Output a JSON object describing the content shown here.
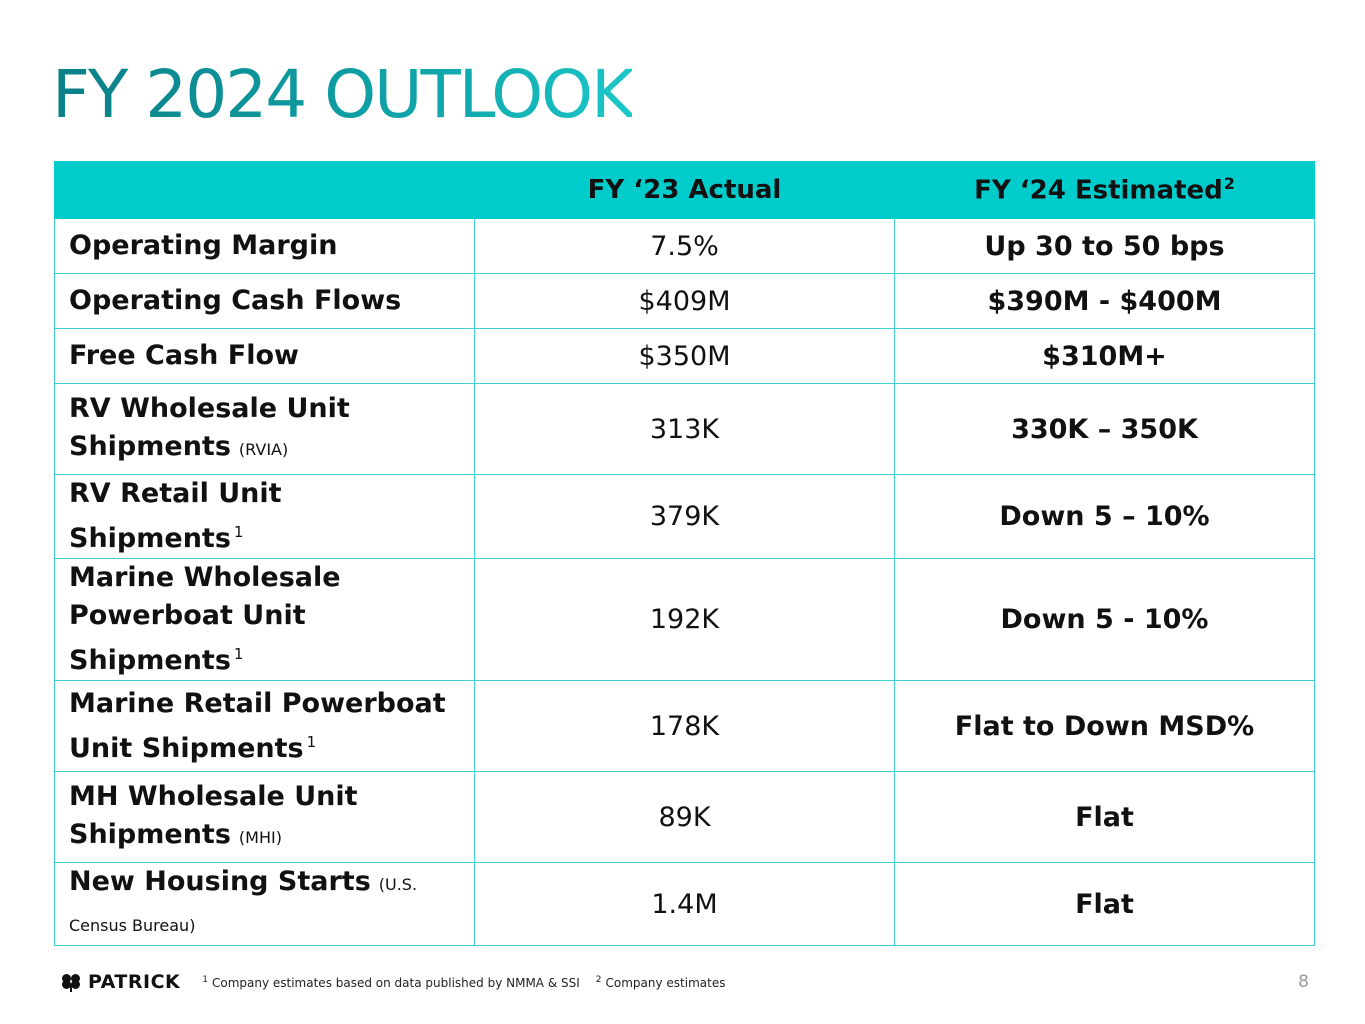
{
  "slide": {
    "title": "FY 2024 OUTLOOK",
    "page_number": "8"
  },
  "table": {
    "headers": {
      "metric": "",
      "actual": "FY ‘23 Actual",
      "estimate": "FY ‘24 Estimated",
      "estimate_footnote": "2"
    },
    "rows": [
      {
        "metric_line1": "Operating Margin",
        "actual": "7.5%",
        "estimate": "Up 30 to 50 bps"
      },
      {
        "metric_line1": "Operating Cash Flows",
        "actual": "$409M",
        "estimate": "$390M - $400M"
      },
      {
        "metric_line1": "Free Cash Flow",
        "actual": "$350M",
        "estimate": "$310M+"
      },
      {
        "metric_line1": "RV Wholesale Unit",
        "metric_line2": "Shipments",
        "source": "(RVIA)",
        "actual": "313K",
        "estimate": "330K – 350K"
      },
      {
        "metric_line1": "RV Retail Unit Shipments",
        "footnote": "1",
        "actual": "379K",
        "estimate": "Down 5 – 10%"
      },
      {
        "metric_line1": "Marine Wholesale",
        "metric_line2": "Powerboat Unit Shipments",
        "footnote": "1",
        "actual": "192K",
        "estimate": "Down 5 - 10%"
      },
      {
        "metric_line1": "Marine Retail Powerboat",
        "metric_line2": "Unit Shipments",
        "footnote": "1",
        "actual": "178K",
        "estimate": "Flat to Down MSD%"
      },
      {
        "metric_line1": "MH Wholesale Unit",
        "metric_line2": "Shipments",
        "source": "(MHI)",
        "actual": "89K",
        "estimate": "Flat"
      },
      {
        "metric_line1": "New Housing Starts",
        "source": "(U.S. Census Bureau)",
        "actual": "1.4M",
        "estimate": "Flat"
      }
    ]
  },
  "footer": {
    "logo_text": "PATRICK",
    "logo_icon": "clover-icon",
    "footnotes": [
      {
        "marker": "1",
        "text": "Company estimates based on data published by NMMA & SSI"
      },
      {
        "marker": "2",
        "text": "Company estimates"
      }
    ]
  },
  "colors": {
    "title_teal": "#0a8f94",
    "header_fill": "#00cccc",
    "grid_line": "#3fcfd2"
  }
}
